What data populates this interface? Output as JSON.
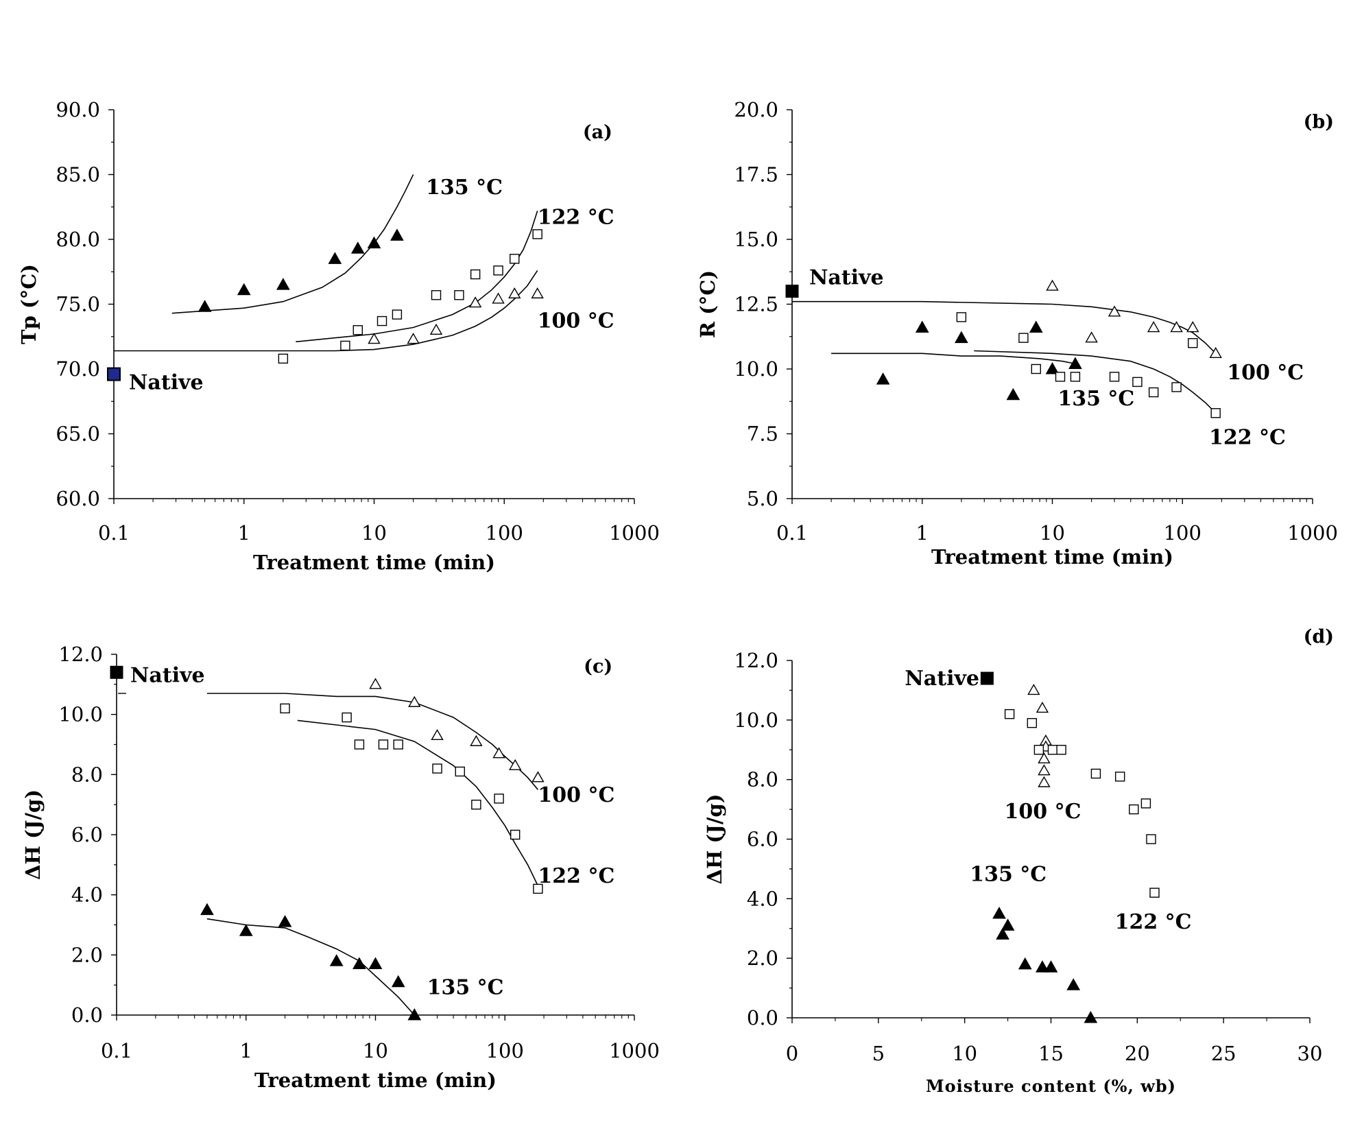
{
  "figure": {
    "background": "#ffffff",
    "ink": "#000000",
    "native_highlight": "#1f2a8c"
  },
  "chart_data": [
    {
      "panel": "(a)",
      "type": "scatter",
      "x_scale": "log",
      "xlabel": "Treatment time (min)",
      "ylabel": "Tp (°C)",
      "xlim": [
        0.1,
        1000
      ],
      "ylim": [
        60,
        90
      ],
      "x_ticks": [
        "0.1",
        "1",
        "10",
        "100",
        "1000"
      ],
      "y_ticks": [
        "60.0",
        "65.0",
        "70.0",
        "75.0",
        "80.0",
        "85.0",
        "90.0"
      ],
      "series": [
        {
          "name": "135 °C",
          "marker": "filled-triangle",
          "x": [
            0.5,
            1,
            2,
            5,
            7.5,
            10,
            15
          ],
          "y": [
            74.8,
            76.1,
            76.5,
            78.5,
            79.3,
            79.7,
            80.3
          ],
          "fit": {
            "x": [
              0.28,
              1,
              2,
              4,
              6,
              8,
              10,
              12,
              15,
              17.5,
              20
            ],
            "y": [
              74.3,
              74.7,
              75.2,
              76.3,
              77.4,
              78.6,
              79.7,
              80.8,
              82.5,
              83.8,
              85.0
            ]
          }
        },
        {
          "name": "122 °C",
          "marker": "open-square",
          "x": [
            2,
            6,
            7.5,
            11.5,
            15,
            30,
            45,
            60,
            90,
            120,
            180
          ],
          "y": [
            70.8,
            71.8,
            73.0,
            73.7,
            74.2,
            75.7,
            75.7,
            77.3,
            77.6,
            78.5,
            80.4
          ],
          "fit": {
            "x": [
              2.5,
              10,
              20,
              40,
              60,
              80,
              100,
              120,
              140,
              160,
              180
            ],
            "y": [
              72.1,
              72.7,
              73.2,
              74.2,
              75.1,
              76.1,
              77.1,
              78.1,
              79.2,
              80.6,
              82.2
            ]
          }
        },
        {
          "name": "100 °C",
          "marker": "open-triangle",
          "x": [
            10,
            20,
            30,
            60,
            90,
            120,
            180
          ],
          "y": [
            72.3,
            72.3,
            73.0,
            75.1,
            75.4,
            75.8,
            75.8
          ],
          "fit": {
            "x": [
              0.1,
              1,
              5,
              10,
              20,
              40,
              60,
              80,
              100,
              120,
              150,
              180
            ],
            "y": [
              71.4,
              71.4,
              71.4,
              71.5,
              71.9,
              72.6,
              73.3,
              74.0,
              74.7,
              75.4,
              76.4,
              77.6
            ]
          }
        }
      ],
      "native": {
        "x": 0.1,
        "y": 69.6,
        "label": "Native"
      },
      "annotations": [
        {
          "text": "135 °C",
          "x": 25,
          "y": 83.5
        },
        {
          "text": "122 °C",
          "x": 180,
          "y": 81.2
        },
        {
          "text": "100 °C",
          "x": 180,
          "y": 73.2
        },
        {
          "text": "(a)",
          "x": 500,
          "y": 87.8
        }
      ]
    },
    {
      "panel": "(b)",
      "type": "scatter",
      "x_scale": "log",
      "xlabel": "Treatment time (min)",
      "ylabel": "R (°C)",
      "xlim": [
        0.1,
        1000
      ],
      "ylim": [
        5,
        20
      ],
      "x_ticks": [
        "0.1",
        "1",
        "10",
        "100",
        "1000"
      ],
      "y_ticks": [
        "5.0",
        "7.5",
        "10.0",
        "12.5",
        "15.0",
        "17.5",
        "20.0"
      ],
      "series": [
        {
          "name": "135 °C",
          "marker": "filled-triangle",
          "x": [
            0.5,
            1,
            2,
            5,
            7.5,
            10,
            15
          ],
          "y": [
            9.6,
            11.6,
            11.2,
            9.0,
            11.6,
            10.0,
            10.2
          ],
          "fit": {
            "x": [
              0.2,
              1,
              2,
              4,
              8,
              12,
              15
            ],
            "y": [
              10.6,
              10.6,
              10.5,
              10.5,
              10.4,
              10.3,
              10.2
            ]
          }
        },
        {
          "name": "122 °C",
          "marker": "open-square",
          "x": [
            2,
            6,
            7.5,
            11.5,
            15,
            30,
            45,
            60,
            90,
            120,
            180
          ],
          "y": [
            12.0,
            11.2,
            10.0,
            9.7,
            9.7,
            9.7,
            9.5,
            9.1,
            9.3,
            11.0,
            8.3
          ],
          "fit": {
            "x": [
              2.5,
              10,
              20,
              40,
              60,
              80,
              100,
              120,
              150,
              180
            ],
            "y": [
              10.7,
              10.6,
              10.5,
              10.3,
              10.0,
              9.7,
              9.4,
              9.1,
              8.7,
              8.3
            ]
          }
        },
        {
          "name": "100 °C",
          "marker": "open-triangle",
          "x": [
            10,
            20,
            30,
            60,
            90,
            120,
            180
          ],
          "y": [
            13.2,
            11.2,
            12.2,
            11.6,
            11.6,
            11.6,
            10.6
          ],
          "fit": {
            "x": [
              0.1,
              1,
              10,
              20,
              40,
              60,
              80,
              100,
              120,
              150,
              180
            ],
            "y": [
              12.6,
              12.6,
              12.5,
              12.4,
              12.2,
              12.0,
              11.8,
              11.6,
              11.4,
              11.0,
              10.6
            ]
          }
        }
      ],
      "native": {
        "x": 0.1,
        "y": 13.0,
        "label": "Native"
      },
      "annotations": [
        {
          "text": "100 °C",
          "x": 220,
          "y": 9.6
        },
        {
          "text": "135 °C",
          "x": 11,
          "y": 8.6
        },
        {
          "text": "122 °C",
          "x": 160,
          "y": 7.1
        },
        {
          "text": "(b)",
          "x": 1900,
          "y": 19.3
        }
      ]
    },
    {
      "panel": "(c)",
      "type": "scatter",
      "x_scale": "log",
      "xlabel": "Treatment time (min)",
      "ylabel": "ΔH (J/g)",
      "xlim": [
        0.1,
        1000
      ],
      "ylim": [
        0,
        12
      ],
      "x_ticks": [
        "0.1",
        "1",
        "10",
        "100",
        "1000"
      ],
      "y_ticks": [
        "0.0",
        "2.0",
        "4.0",
        "6.0",
        "8.0",
        "10.0",
        "12.0"
      ],
      "series": [
        {
          "name": "100 °C",
          "marker": "open-triangle",
          "x": [
            10,
            20,
            30,
            60,
            90,
            120,
            180
          ],
          "y": [
            11.0,
            10.4,
            9.3,
            9.1,
            8.7,
            8.3,
            7.9
          ],
          "fit": {
            "x": [
              0.5,
              2,
              5,
              10,
              20,
              40,
              60,
              80,
              100,
              120,
              150,
              180
            ],
            "y": [
              10.7,
              10.7,
              10.6,
              10.6,
              10.4,
              9.9,
              9.4,
              9.0,
              8.6,
              8.3,
              7.9,
              7.5
            ]
          }
        },
        {
          "name": "122 °C",
          "marker": "open-square",
          "x": [
            2,
            6,
            7.5,
            11.5,
            15,
            30,
            45,
            60,
            90,
            120,
            180
          ],
          "y": [
            10.2,
            9.9,
            9.0,
            9.0,
            9.0,
            8.2,
            8.1,
            7.0,
            7.2,
            6.0,
            4.2
          ],
          "fit": {
            "x": [
              2.5,
              10,
              20,
              40,
              60,
              80,
              100,
              120,
              150,
              180
            ],
            "y": [
              9.8,
              9.5,
              9.1,
              8.3,
              7.6,
              6.9,
              6.3,
              5.7,
              5.0,
              4.3
            ]
          }
        },
        {
          "name": "135 °C",
          "marker": "filled-triangle",
          "x": [
            0.5,
            1,
            2,
            5,
            7.5,
            10,
            15,
            20
          ],
          "y": [
            3.5,
            2.8,
            3.1,
            1.8,
            1.7,
            1.7,
            1.1,
            0.0
          ],
          "fit": {
            "x": [
              0.5,
              1,
              2,
              3,
              5,
              7.5,
              10,
              15,
              20
            ],
            "y": [
              3.2,
              3.0,
              2.9,
              2.6,
              2.2,
              1.8,
              1.3,
              0.6,
              0.0
            ]
          }
        }
      ],
      "native": {
        "x": 0.1,
        "y": 11.4,
        "label": "Native"
      },
      "annotations": [
        {
          "text": "100 °C",
          "x": 180,
          "y": 7.1
        },
        {
          "text": "122 °C",
          "x": 180,
          "y": 4.4
        },
        {
          "text": "135 °C",
          "x": 25,
          "y": 0.7
        },
        {
          "text": "(c)",
          "x": 500,
          "y": 11.4
        }
      ]
    },
    {
      "panel": "(d)",
      "type": "scatter",
      "x_scale": "linear",
      "xlabel": "Moisture content (%, wb)",
      "ylabel": "ΔH (J/g)",
      "xlim": [
        0,
        30
      ],
      "ylim": [
        0,
        12
      ],
      "x_ticks": [
        "0",
        "5",
        "10",
        "15",
        "20",
        "25",
        "30"
      ],
      "y_ticks": [
        "0.0",
        "2.0",
        "4.0",
        "6.0",
        "8.0",
        "10.0",
        "12.0"
      ],
      "series": [
        {
          "name": "100 °C",
          "marker": "open-triangle",
          "x": [
            14.0,
            14.5,
            14.7,
            14.7,
            14.6,
            14.6,
            14.6
          ],
          "y": [
            11.0,
            10.4,
            9.3,
            9.1,
            8.7,
            8.3,
            7.9
          ]
        },
        {
          "name": "122 °C",
          "marker": "open-square",
          "x": [
            12.6,
            13.9,
            14.3,
            15.1,
            15.6,
            17.6,
            19.0,
            19.8,
            20.5,
            20.8,
            21.0
          ],
          "y": [
            10.2,
            9.9,
            9.0,
            9.0,
            9.0,
            8.2,
            8.1,
            7.0,
            7.2,
            6.0,
            4.2
          ]
        },
        {
          "name": "135 °C",
          "marker": "filled-triangle",
          "x": [
            12.0,
            12.5,
            12.2,
            13.5,
            14.5,
            15.0,
            16.3,
            17.3
          ],
          "y": [
            3.5,
            3.1,
            2.8,
            1.8,
            1.7,
            1.7,
            1.1,
            0.0
          ]
        }
      ],
      "native": {
        "x": 11.3,
        "y": 11.4,
        "label": "Native"
      },
      "annotations": [
        {
          "text": "100 °C",
          "x": 12.3,
          "y": 6.7
        },
        {
          "text": "135 °C",
          "x": 10.3,
          "y": 4.6
        },
        {
          "text": "122 °C",
          "x": 18.7,
          "y": 3.0
        },
        {
          "text": "(d)",
          "x": 30.8,
          "y": 12.6
        }
      ]
    }
  ]
}
